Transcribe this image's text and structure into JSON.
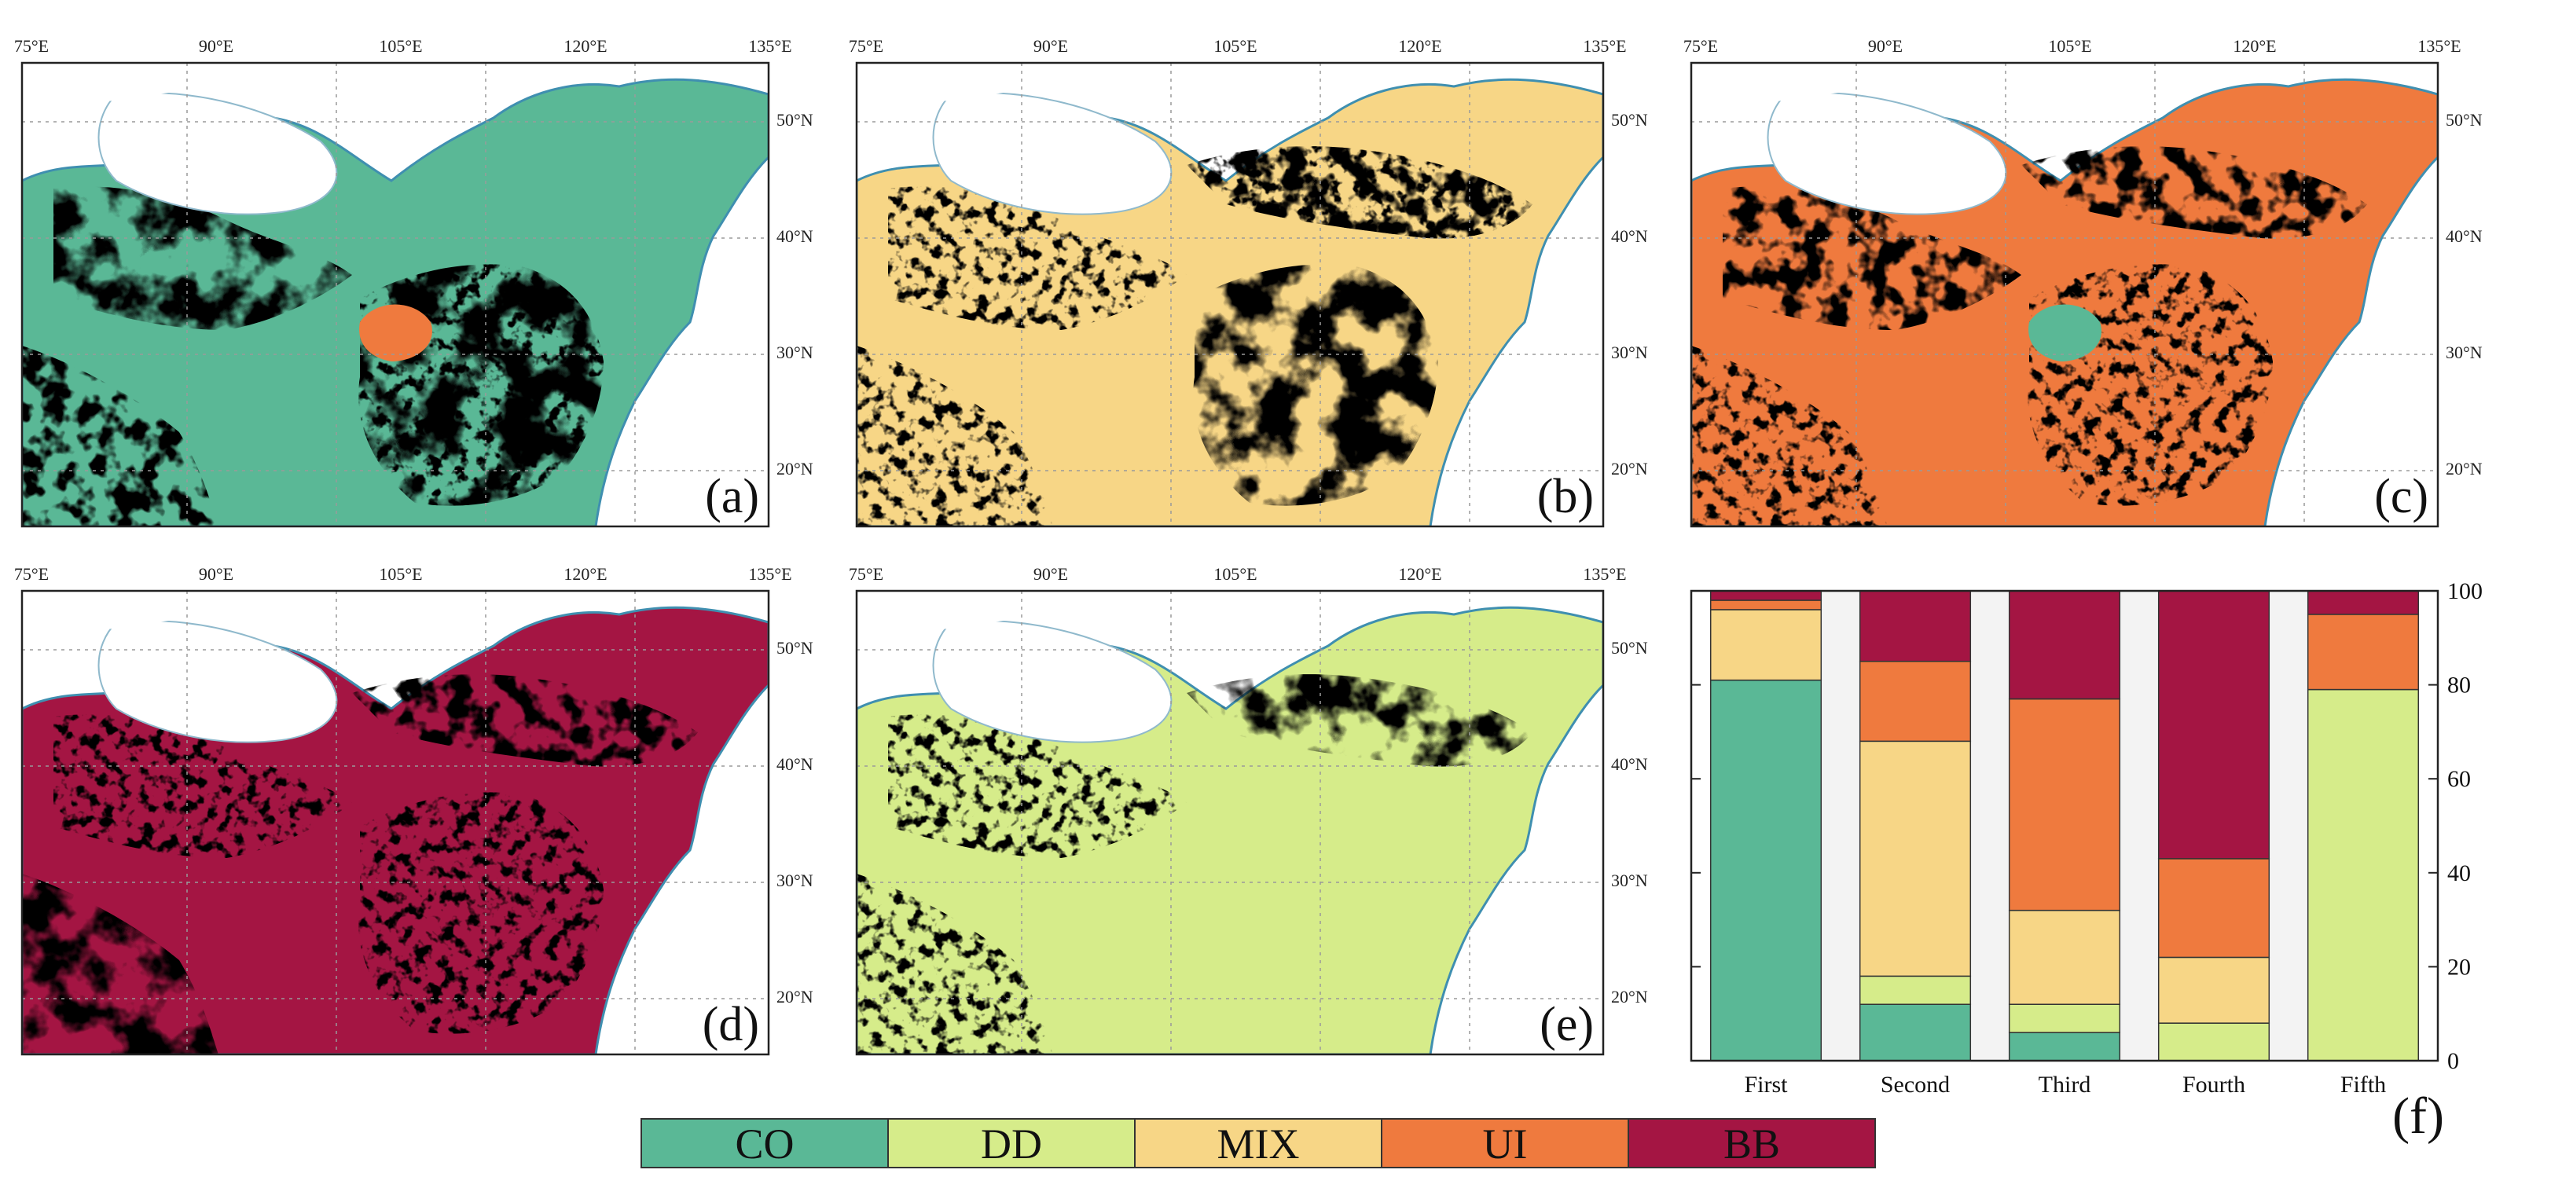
{
  "colors": {
    "CO": "#5ab896",
    "DD": "#d6ec8a",
    "MIX": "#f7d686",
    "UI": "#ef7a3e",
    "BB": "#a41543",
    "water": "#3f8fb0",
    "frame": "#222222"
  },
  "map_axes": {
    "lon_labels": [
      "75°E",
      "90°E",
      "105°E",
      "120°E",
      "135°E"
    ],
    "lat_labels": [
      "50°N",
      "40°N",
      "30°N",
      "20°N"
    ]
  },
  "panels": [
    {
      "label": "(a)",
      "dominant": "CO",
      "secondary": [
        "MIX",
        "UI"
      ]
    },
    {
      "label": "(b)",
      "dominant": "MIX",
      "secondary": [
        "UI",
        "BB",
        "CO"
      ]
    },
    {
      "label": "(c)",
      "dominant": "UI",
      "secondary": [
        "BB",
        "MIX",
        "CO"
      ]
    },
    {
      "label": "(d)",
      "dominant": "BB",
      "secondary": [
        "UI",
        "MIX"
      ]
    },
    {
      "label": "(e)",
      "dominant": "DD",
      "secondary": [
        "UI",
        "BB"
      ]
    }
  ],
  "legend": {
    "items": [
      "CO",
      "DD",
      "MIX",
      "UI",
      "BB"
    ]
  },
  "chart_data": {
    "type": "bar",
    "stacked": true,
    "panel_label": "(f)",
    "categories": [
      "First",
      "Second",
      "Third",
      "Fourth",
      "Fifth"
    ],
    "ylim": [
      0,
      100
    ],
    "yticks": [
      "0",
      "20",
      "40",
      "60",
      "80",
      "100"
    ],
    "series": [
      {
        "name": "CO",
        "values": [
          81,
          12,
          6,
          0,
          0
        ]
      },
      {
        "name": "DD",
        "values": [
          0,
          6,
          6,
          8,
          79
        ]
      },
      {
        "name": "MIX",
        "values": [
          15,
          50,
          20,
          14,
          0
        ]
      },
      {
        "name": "UI",
        "values": [
          2,
          17,
          45,
          21,
          16
        ]
      },
      {
        "name": "BB",
        "values": [
          2,
          15,
          23,
          57,
          5
        ]
      }
    ]
  }
}
